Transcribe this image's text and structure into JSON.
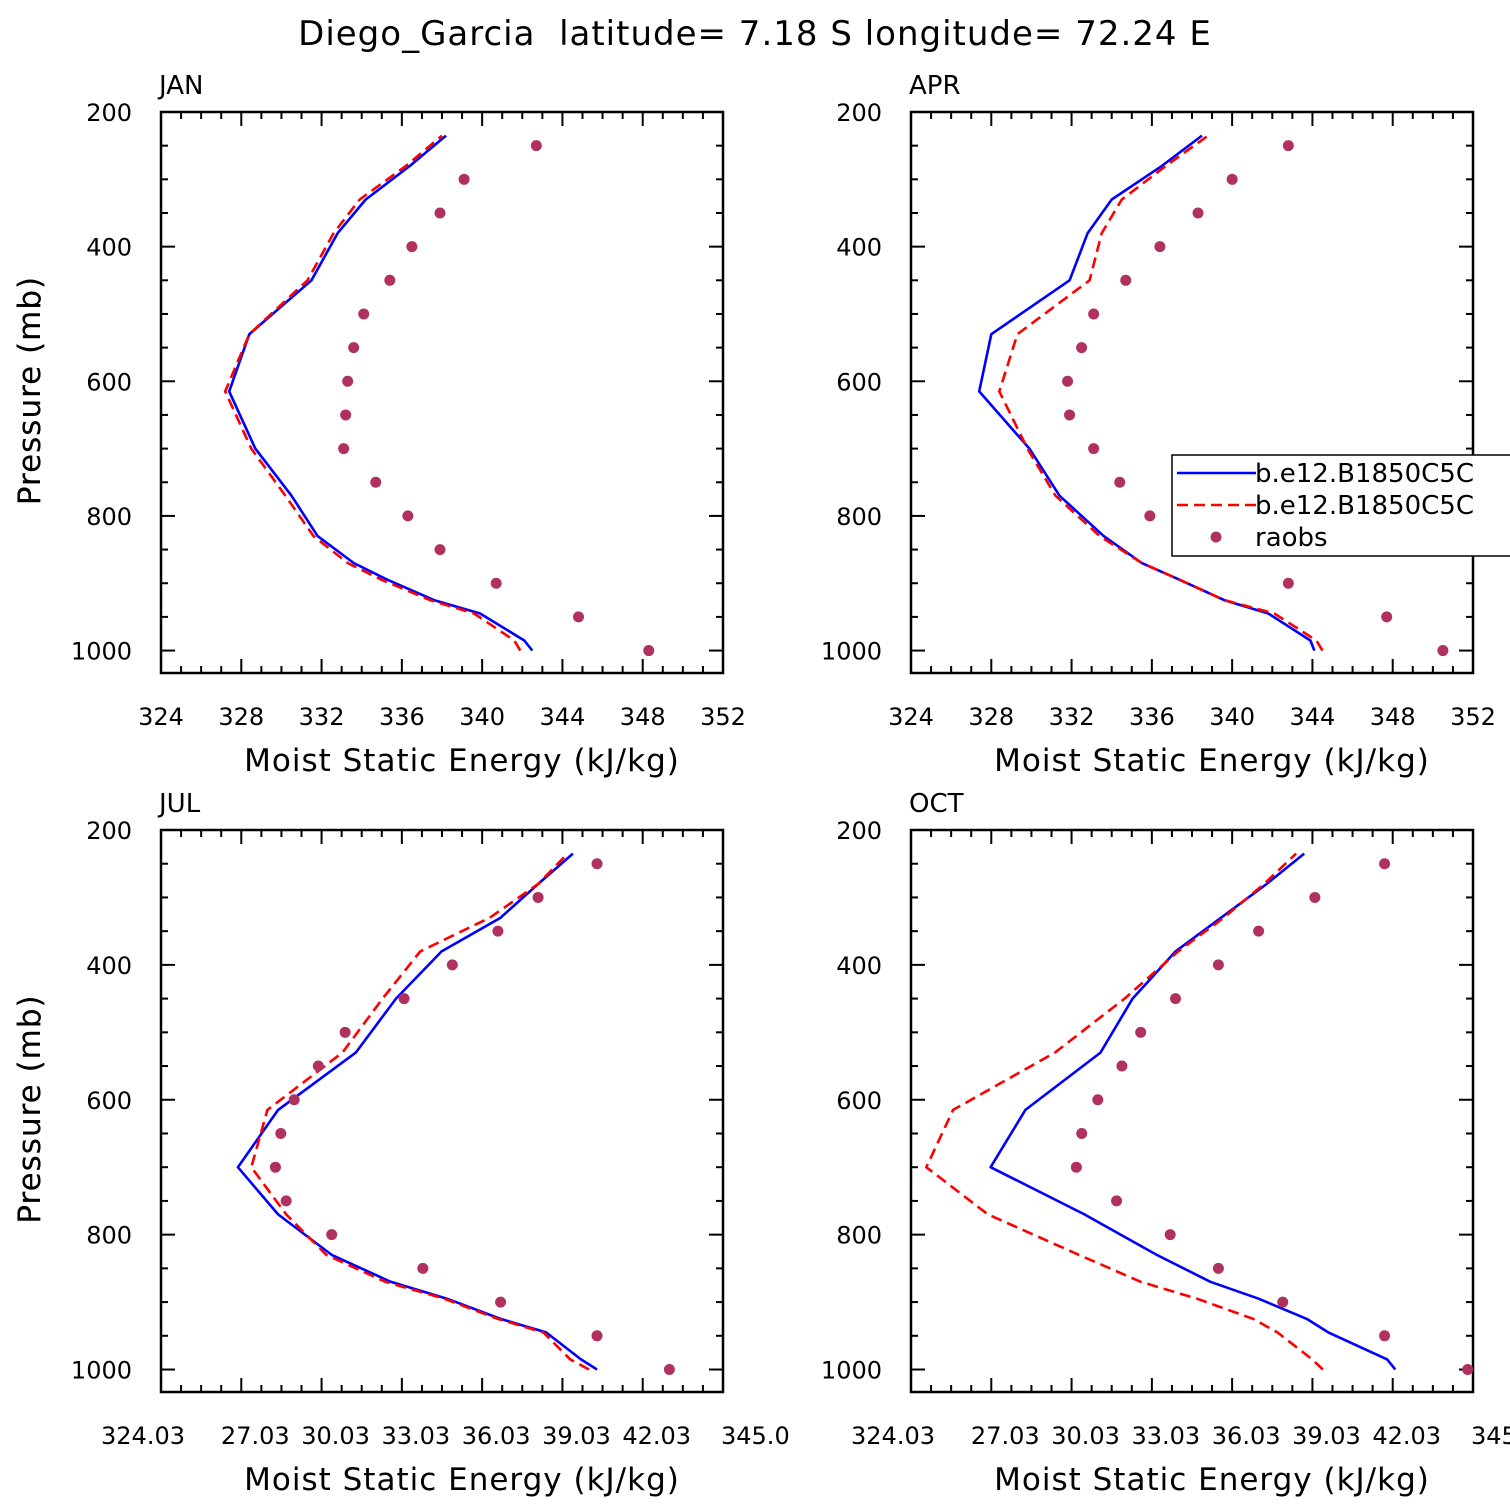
{
  "figure": {
    "title": "Diego_Garcia  latitude= 7.18 S longitude= 72.24 E"
  },
  "colors": {
    "model1": "#0000ff",
    "model2": "#ff0000",
    "obs": "#b03060"
  },
  "legend": {
    "items": [
      {
        "label": "b.e12.B1850C5C",
        "style": "solid",
        "color": "#0000ff"
      },
      {
        "label": "b.e12.B1850C5C",
        "style": "dashed",
        "color": "#ff0000"
      },
      {
        "label": "raobs",
        "style": "marker",
        "color": "#b03060"
      }
    ],
    "placement": "right, over APR panel"
  },
  "chart_data": [
    {
      "type": "line",
      "panel_title": "JAN",
      "xlabel": "Moist Static Energy (kJ/kg)",
      "ylabel": "Pressure (mb)",
      "xlim": [
        324,
        352
      ],
      "ylim": [
        1000,
        200
      ],
      "y_inverted": true,
      "xticks": [
        324,
        328,
        332,
        336,
        340,
        344,
        348,
        352
      ],
      "xtick_labels": [
        "324",
        "328",
        "332",
        "336",
        "340",
        "344",
        "348",
        "352"
      ],
      "yticks": [
        200,
        400,
        600,
        800,
        1000
      ],
      "ytick_labels": [
        "200",
        "400",
        "600",
        "800",
        "1000"
      ],
      "series": [
        {
          "name": "b.e12.B1850C5C",
          "style": "solid",
          "x": [
            342.5,
            342.1,
            339.9,
            337.6,
            335.3,
            333.6,
            331.8,
            330.5,
            328.7,
            327.4,
            328.4,
            331.5,
            332.8,
            334.2,
            336.4,
            338.2
          ],
          "y": [
            1000,
            985,
            945,
            925,
            895,
            870,
            830,
            770,
            700,
            615,
            530,
            450,
            380,
            330,
            280,
            235
          ]
        },
        {
          "name": "b.e12.B1850C5C",
          "style": "dashed",
          "x": [
            341.9,
            341.6,
            339.6,
            337.4,
            335.0,
            333.3,
            331.6,
            330.2,
            328.5,
            327.2,
            328.4,
            331.3,
            332.6,
            333.9,
            336.2,
            338.0
          ],
          "y": [
            1000,
            985,
            945,
            925,
            895,
            870,
            830,
            770,
            700,
            615,
            530,
            450,
            380,
            330,
            280,
            235
          ]
        },
        {
          "name": "raobs",
          "style": "marker",
          "x": [
            348.3,
            344.8,
            340.7,
            337.9,
            336.3,
            334.7,
            333.1,
            333.2,
            333.3,
            333.6,
            334.1,
            335.4,
            336.5,
            337.9,
            339.1,
            342.7
          ],
          "y": [
            1000,
            950,
            900,
            850,
            800,
            750,
            700,
            650,
            600,
            550,
            500,
            450,
            400,
            350,
            300,
            250
          ]
        }
      ]
    },
    {
      "type": "line",
      "panel_title": "APR",
      "xlabel": "Moist Static Energy (kJ/kg)",
      "ylabel": "Pressure (mb)",
      "xlim": [
        324,
        352
      ],
      "ylim": [
        1000,
        200
      ],
      "y_inverted": true,
      "xticks": [
        324,
        328,
        332,
        336,
        340,
        344,
        348,
        352
      ],
      "xtick_labels": [
        "324",
        "328",
        "332",
        "336",
        "340",
        "344",
        "348",
        "352"
      ],
      "yticks": [
        200,
        400,
        600,
        800,
        1000
      ],
      "ytick_labels": [
        "200",
        "400",
        "600",
        "800",
        "1000"
      ],
      "series": [
        {
          "name": "b.e12.B1850C5C",
          "style": "solid",
          "x": [
            344.1,
            343.9,
            341.8,
            339.6,
            337.4,
            335.5,
            333.6,
            331.4,
            329.9,
            327.4,
            328.0,
            331.9,
            332.8,
            334.0,
            336.5,
            338.5
          ],
          "y": [
            1000,
            985,
            945,
            925,
            895,
            870,
            830,
            770,
            700,
            615,
            530,
            450,
            380,
            330,
            280,
            235
          ]
        },
        {
          "name": "b.e12.B1850C5C",
          "style": "dashed",
          "x": [
            344.5,
            344.2,
            342.1,
            339.6,
            337.4,
            335.5,
            333.4,
            331.2,
            329.8,
            328.4,
            329.3,
            332.9,
            333.5,
            334.5,
            336.7,
            338.8
          ],
          "y": [
            1000,
            985,
            945,
            925,
            895,
            870,
            830,
            770,
            700,
            615,
            530,
            450,
            380,
            330,
            280,
            235
          ]
        },
        {
          "name": "raobs",
          "style": "marker",
          "x": [
            350.5,
            347.7,
            342.8,
            338.9,
            335.9,
            334.4,
            333.1,
            331.9,
            331.8,
            332.5,
            333.1,
            334.7,
            336.4,
            338.3,
            340.0,
            342.8
          ],
          "y": [
            1000,
            950,
            900,
            850,
            800,
            750,
            700,
            650,
            600,
            550,
            500,
            450,
            400,
            350,
            300,
            250
          ]
        }
      ]
    },
    {
      "type": "line",
      "panel_title": "JUL",
      "xlabel": "Moist Static Energy (kJ/kg)",
      "ylabel": "Pressure (mb)",
      "xlim": [
        324.03,
        345.0
      ],
      "ylim": [
        1000,
        200
      ],
      "y_inverted": true,
      "xticks": [
        324.03,
        327.03,
        330.03,
        333.03,
        336.03,
        339.03,
        342.03,
        345.0
      ],
      "xtick_labels": [
        "324.03",
        "27.03",
        "30.03",
        "33.03",
        "36.03",
        "39.03",
        "42.03",
        "345.0"
      ],
      "yticks": [
        200,
        400,
        600,
        800,
        1000
      ],
      "ytick_labels": [
        "200",
        "400",
        "600",
        "800",
        "1000"
      ],
      "series": [
        {
          "name": "b.e12.B1850C5C",
          "style": "solid",
          "x": [
            340.3,
            339.7,
            338.4,
            336.7,
            334.7,
            332.6,
            330.4,
            328.4,
            326.9,
            328.4,
            331.3,
            332.8,
            334.5,
            336.7,
            338.1,
            339.4
          ],
          "y": [
            1000,
            985,
            945,
            925,
            895,
            870,
            830,
            770,
            700,
            615,
            530,
            450,
            380,
            330,
            280,
            235
          ]
        },
        {
          "name": "b.e12.B1850C5C",
          "style": "dashed",
          "x": [
            340.0,
            339.3,
            338.3,
            336.6,
            334.6,
            332.4,
            330.2,
            328.7,
            327.4,
            328.0,
            330.8,
            332.3,
            333.7,
            336.3,
            338.1,
            339.2
          ],
          "y": [
            1000,
            985,
            945,
            925,
            895,
            870,
            830,
            770,
            700,
            615,
            530,
            450,
            380,
            330,
            280,
            235
          ]
        },
        {
          "name": "raobs",
          "style": "marker",
          "x": [
            343.0,
            340.3,
            336.7,
            333.8,
            330.4,
            328.7,
            328.3,
            328.5,
            329.0,
            329.9,
            330.9,
            333.1,
            334.9,
            336.6,
            338.1,
            340.3
          ],
          "y": [
            1000,
            950,
            900,
            850,
            800,
            750,
            700,
            650,
            600,
            550,
            500,
            450,
            400,
            350,
            300,
            250
          ]
        }
      ]
    },
    {
      "type": "line",
      "panel_title": "OCT",
      "xlabel": "Moist Static Energy (kJ/kg)",
      "ylabel": "Pressure (mb)",
      "xlim": [
        324.03,
        345.0
      ],
      "ylim": [
        1000,
        200
      ],
      "y_inverted": true,
      "xticks": [
        324.03,
        327.03,
        330.03,
        333.03,
        336.03,
        339.03,
        342.03,
        345.0
      ],
      "xtick_labels": [
        "324.03",
        "27.03",
        "30.03",
        "33.03",
        "36.03",
        "39.03",
        "42.03",
        "345.0"
      ],
      "yticks": [
        200,
        400,
        600,
        800,
        1000
      ],
      "ytick_labels": [
        "200",
        "400",
        "600",
        "800",
        "1000"
      ],
      "series": [
        {
          "name": "b.e12.B1850C5C",
          "style": "solid",
          "x": [
            342.1,
            341.8,
            339.6,
            338.8,
            337.0,
            335.2,
            333.2,
            330.5,
            327.0,
            328.3,
            331.1,
            332.3,
            333.9,
            335.6,
            337.3,
            338.7
          ],
          "y": [
            1000,
            985,
            945,
            925,
            895,
            870,
            830,
            770,
            700,
            615,
            530,
            450,
            380,
            330,
            280,
            235
          ]
        },
        {
          "name": "b.e12.B1850C5C",
          "style": "dashed",
          "x": [
            339.4,
            339.0,
            337.7,
            336.8,
            334.7,
            332.6,
            330.3,
            326.9,
            324.6,
            325.6,
            329.4,
            332.0,
            334.0,
            335.7,
            337.2,
            338.4
          ],
          "y": [
            1000,
            985,
            945,
            925,
            895,
            870,
            830,
            770,
            700,
            615,
            530,
            450,
            380,
            330,
            280,
            235
          ]
        },
        {
          "name": "raobs",
          "style": "marker",
          "x": [
            344.8,
            341.7,
            337.9,
            335.5,
            333.7,
            331.7,
            330.2,
            330.4,
            331.0,
            331.9,
            332.6,
            333.9,
            335.5,
            337.0,
            339.1,
            341.7
          ],
          "y": [
            1000,
            950,
            900,
            850,
            800,
            750,
            700,
            650,
            600,
            550,
            500,
            450,
            400,
            350,
            300,
            250
          ]
        }
      ]
    }
  ]
}
